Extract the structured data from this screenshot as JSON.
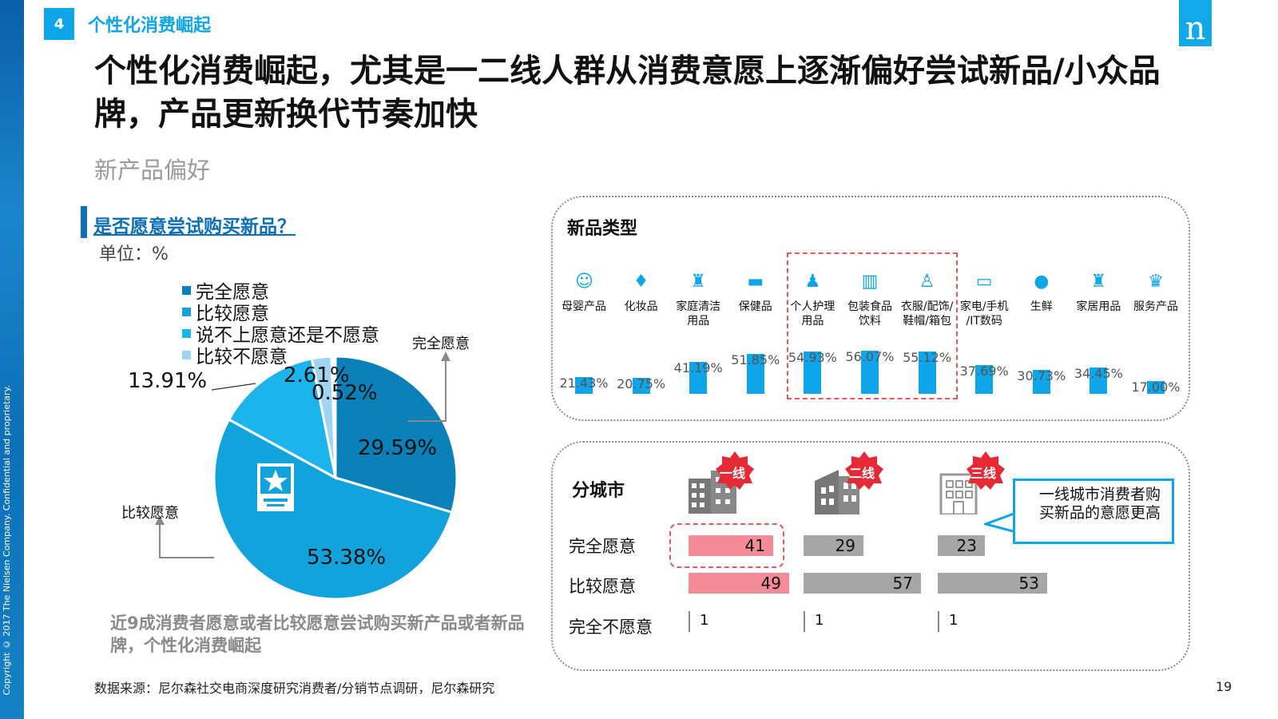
{
  "header": {
    "section_number": "4",
    "section_title": "个性化消费崛起",
    "logo_text": "n",
    "title": "个性化消费崛起，尤其是一二线人群从消费意愿上逐渐偏好尝试新品/小众品牌，产品更新换代节奏加快",
    "subtitle": "新产品偏好",
    "copyright": "Copyright © 2017 The Nielsen Company. Confidential and proprietary."
  },
  "left_panel": {
    "question": "是否愿意尝试购买新品？",
    "unit": "单位：%",
    "callout_top": "完全愿意",
    "callout_left": "比较愿意",
    "note": "近9成消费者愿意或者比较愿意尝试购买新产品或者新品牌，个性化消费崛起"
  },
  "colors": {
    "fully_willing": "#0a7fb8",
    "fairly_willing": "#13a3dc",
    "neutral": "#1cb4ec",
    "fairly_unwilling": "#9fd4f2",
    "not_willing": "#ffffff",
    "accent": "#0ea5e9",
    "highlight_red": "#f38b98",
    "gray_bar": "#a6a6a6"
  },
  "chart_data": [
    {
      "type": "pie",
      "title": "是否愿意尝试购买新品？",
      "slices": [
        {
          "label": "完全愿意",
          "value": 29.59,
          "text": "29.59%"
        },
        {
          "label": "比较愿意",
          "value": 53.38,
          "text": "53.38%"
        },
        {
          "label": "说不上愿意还是不愿意",
          "value": 13.91,
          "text": "13.91%"
        },
        {
          "label": "比较不愿意",
          "value": 2.61,
          "text": "2.61%"
        },
        {
          "label": "",
          "value": 0.52,
          "text": "0.52%"
        }
      ],
      "legend": [
        "完全愿意",
        "比较愿意",
        "说不上愿意还是不愿意",
        "比较不愿意"
      ]
    },
    {
      "type": "bar",
      "title": "新品类型",
      "categories": [
        "母婴产品",
        "化妆品",
        "家庭清洁用品",
        "保健品",
        "个人护理用品",
        "包装食品饮料",
        "衣服/配饰/鞋帽/箱包",
        "家电/手机/IT数码",
        "生鲜",
        "家居用品",
        "服务产品"
      ],
      "category_lines": [
        [
          "母婴产品"
        ],
        [
          "化妆品"
        ],
        [
          "家庭清洁",
          "用品"
        ],
        [
          "保健品"
        ],
        [
          "个人护理",
          "用品"
        ],
        [
          "包装食品",
          "饮料"
        ],
        [
          "衣服/配饰/",
          "鞋帽/箱包"
        ],
        [
          "家电/手机",
          "/IT数码"
        ],
        [
          "生鲜"
        ],
        [
          "家居用品"
        ],
        [
          "服务产品"
        ]
      ],
      "values": [
        21.43,
        20.75,
        41.19,
        51.85,
        54.93,
        56.07,
        55.12,
        37.69,
        30.73,
        34.45,
        17.0
      ],
      "value_labels": [
        "21.43%",
        "20.75%",
        "41.19%",
        "51.85%",
        "54.93%",
        "56.07%",
        "55.12%",
        "37.69%",
        "30.73%",
        "34.45%",
        "17.00%"
      ],
      "highlighted": [
        "个人护理用品",
        "包装食品饮料",
        "衣服/配饰/鞋帽/箱包"
      ]
    },
    {
      "type": "bar",
      "title": "分城市",
      "categories": [
        "完全愿意",
        "比较愿意",
        "完全不愿意"
      ],
      "series": [
        {
          "name": "一线",
          "values": [
            41,
            49,
            1
          ]
        },
        {
          "name": "二线",
          "values": [
            29,
            57,
            1
          ]
        },
        {
          "name": "三线",
          "values": [
            23,
            53,
            1
          ]
        }
      ]
    }
  ],
  "city_panel": {
    "bubble_text": "一线城市消费者购买新品的意愿更高"
  },
  "footer": {
    "source": "数据来源：尼尔森社交电商深度研究消费者/分销节点调研，尼尔森研究",
    "page": "19"
  }
}
